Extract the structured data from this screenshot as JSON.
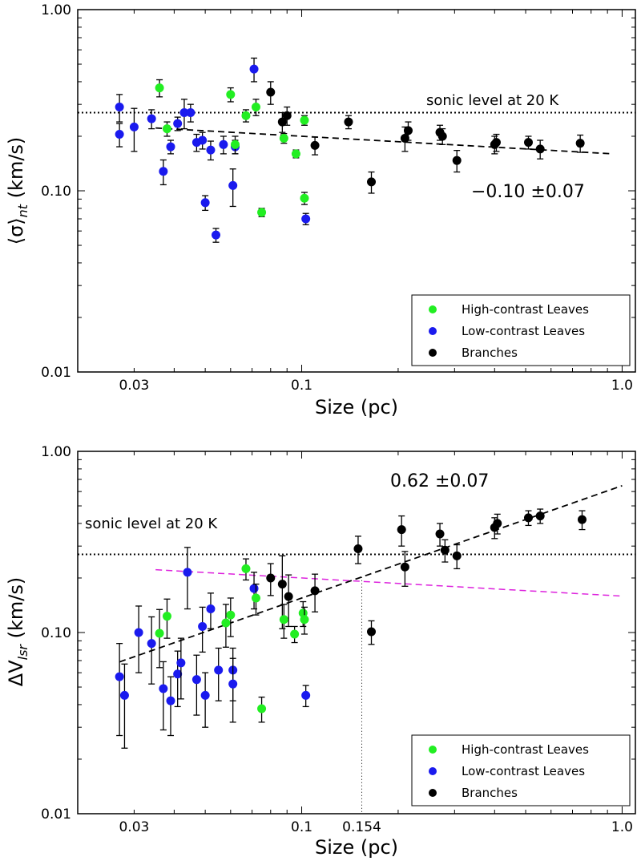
{
  "chart_data": [
    {
      "type": "scatter",
      "panel": "top",
      "xlabel": "Size (pc)",
      "ylabel": "⟨σ⟩",
      "ylabel_sub": "nt",
      "ylabel_unit": " (km/s)",
      "xscale": "log",
      "yscale": "log",
      "xlim": [
        0.02,
        1.1
      ],
      "ylim": [
        0.01,
        1.0
      ],
      "x_ticks": [
        {
          "value": 0.03,
          "label": "0.03"
        },
        {
          "value": 0.1,
          "label": "0.1"
        },
        {
          "value": 1.0,
          "label": "1.0"
        }
      ],
      "y_ticks": [
        {
          "value": 0.01,
          "label": "0.01"
        },
        {
          "value": 0.1,
          "label": "0.10"
        },
        {
          "value": 1.0,
          "label": "1.00"
        }
      ],
      "sonic_level": 0.27,
      "sonic_label": "sonic level at 20 K",
      "fit": {
        "label": "−0.10 ±0.07",
        "x_range": [
          0.035,
          0.93
        ],
        "slope": -0.1,
        "value_at_0_1": 0.2,
        "color": "#000000"
      },
      "series": [
        {
          "name": "High-contrast Leaves",
          "color": "#22ee22",
          "points": [
            {
              "x": 0.036,
              "y": 0.37,
              "err": 0.04
            },
            {
              "x": 0.038,
              "y": 0.22,
              "err": 0.02
            },
            {
              "x": 0.06,
              "y": 0.34,
              "err": 0.03
            },
            {
              "x": 0.067,
              "y": 0.26,
              "err": 0.02
            },
            {
              "x": 0.072,
              "y": 0.29,
              "err": 0.03
            },
            {
              "x": 0.062,
              "y": 0.18,
              "err": 0.02
            },
            {
              "x": 0.075,
              "y": 0.076,
              "err": 0.004
            },
            {
              "x": 0.088,
              "y": 0.195,
              "err": 0.012
            },
            {
              "x": 0.096,
              "y": 0.16,
              "err": 0.008
            },
            {
              "x": 0.102,
              "y": 0.245,
              "err": 0.015
            },
            {
              "x": 0.102,
              "y": 0.091,
              "err": 0.007
            }
          ]
        },
        {
          "name": "Low-contrast Leaves",
          "color": "#1a1aee",
          "points": [
            {
              "x": 0.027,
              "y": 0.29,
              "err": 0.05
            },
            {
              "x": 0.027,
              "y": 0.205,
              "err": 0.03
            },
            {
              "x": 0.03,
              "y": 0.225,
              "err": 0.06
            },
            {
              "x": 0.034,
              "y": 0.25,
              "err": 0.03
            },
            {
              "x": 0.037,
              "y": 0.128,
              "err": 0.02
            },
            {
              "x": 0.039,
              "y": 0.175,
              "err": 0.015
            },
            {
              "x": 0.041,
              "y": 0.235,
              "err": 0.02
            },
            {
              "x": 0.043,
              "y": 0.27,
              "err": 0.05
            },
            {
              "x": 0.045,
              "y": 0.27,
              "err": 0.03
            },
            {
              "x": 0.047,
              "y": 0.185,
              "err": 0.02
            },
            {
              "x": 0.049,
              "y": 0.19,
              "err": 0.02
            },
            {
              "x": 0.05,
              "y": 0.086,
              "err": 0.008
            },
            {
              "x": 0.052,
              "y": 0.168,
              "err": 0.02
            },
            {
              "x": 0.054,
              "y": 0.057,
              "err": 0.005
            },
            {
              "x": 0.057,
              "y": 0.18,
              "err": 0.02
            },
            {
              "x": 0.061,
              "y": 0.107,
              "err": 0.025
            },
            {
              "x": 0.062,
              "y": 0.175,
              "err": 0.015
            },
            {
              "x": 0.071,
              "y": 0.47,
              "err": 0.07
            },
            {
              "x": 0.103,
              "y": 0.07,
              "err": 0.005
            }
          ]
        },
        {
          "name": "Branches",
          "color": "#000000",
          "points": [
            {
              "x": 0.08,
              "y": 0.35,
              "err": 0.05
            },
            {
              "x": 0.087,
              "y": 0.24,
              "err": 0.03
            },
            {
              "x": 0.09,
              "y": 0.26,
              "err": 0.03
            },
            {
              "x": 0.11,
              "y": 0.178,
              "err": 0.02
            },
            {
              "x": 0.14,
              "y": 0.24,
              "err": 0.02
            },
            {
              "x": 0.165,
              "y": 0.112,
              "err": 0.015
            },
            {
              "x": 0.21,
              "y": 0.195,
              "err": 0.03
            },
            {
              "x": 0.215,
              "y": 0.215,
              "err": 0.025
            },
            {
              "x": 0.27,
              "y": 0.21,
              "err": 0.02
            },
            {
              "x": 0.275,
              "y": 0.2,
              "err": 0.02
            },
            {
              "x": 0.305,
              "y": 0.147,
              "err": 0.02
            },
            {
              "x": 0.4,
              "y": 0.18,
              "err": 0.02
            },
            {
              "x": 0.405,
              "y": 0.185,
              "err": 0.02
            },
            {
              "x": 0.51,
              "y": 0.185,
              "err": 0.015
            },
            {
              "x": 0.555,
              "y": 0.17,
              "err": 0.02
            },
            {
              "x": 0.74,
              "y": 0.183,
              "err": 0.02
            }
          ]
        }
      ]
    },
    {
      "type": "scatter",
      "panel": "bottom",
      "xlabel": "Size (pc)",
      "ylabel": "ΔV",
      "ylabel_sub": "lsr",
      "ylabel_unit": " (km/s)",
      "xscale": "log",
      "yscale": "log",
      "xlim": [
        0.02,
        1.1
      ],
      "ylim": [
        0.01,
        1.0
      ],
      "x_ticks": [
        {
          "value": 0.03,
          "label": "0.03"
        },
        {
          "value": 0.1,
          "label": "0.1"
        },
        {
          "value": 0.154,
          "label": "0.154"
        },
        {
          "value": 1.0,
          "label": "1.0"
        }
      ],
      "y_ticks": [
        {
          "value": 0.01,
          "label": "0.01"
        },
        {
          "value": 0.1,
          "label": "0.10"
        },
        {
          "value": 1.0,
          "label": "1.00"
        }
      ],
      "sonic_level": 0.27,
      "sonic_label": "sonic level at 20 K",
      "vertical_marker": 0.154,
      "fit": {
        "label": "0.62 ±0.07",
        "x_range": [
          0.027,
          1.0
        ],
        "slope": 0.62,
        "value_at_0_1": 0.155,
        "color": "#000000"
      },
      "reference_fit": {
        "x_range": [
          0.035,
          1.0
        ],
        "slope": -0.1,
        "value_at_0_1": 0.2,
        "color": "#dd22dd"
      },
      "series": [
        {
          "name": "High-contrast Leaves",
          "color": "#22ee22",
          "points": [
            {
              "x": 0.036,
              "y": 0.099,
              "err": 0.035
            },
            {
              "x": 0.038,
              "y": 0.123,
              "err": 0.03
            },
            {
              "x": 0.058,
              "y": 0.113,
              "err": 0.03
            },
            {
              "x": 0.06,
              "y": 0.125,
              "err": 0.03
            },
            {
              "x": 0.067,
              "y": 0.225,
              "err": 0.03
            },
            {
              "x": 0.072,
              "y": 0.155,
              "err": 0.03
            },
            {
              "x": 0.075,
              "y": 0.038,
              "err": 0.006
            },
            {
              "x": 0.088,
              "y": 0.118,
              "err": 0.025
            },
            {
              "x": 0.095,
              "y": 0.098,
              "err": 0.01
            },
            {
              "x": 0.101,
              "y": 0.128,
              "err": 0.02
            },
            {
              "x": 0.102,
              "y": 0.118,
              "err": 0.02
            }
          ]
        },
        {
          "name": "Low-contrast Leaves",
          "color": "#1a1aee",
          "points": [
            {
              "x": 0.027,
              "y": 0.057,
              "err": 0.03
            },
            {
              "x": 0.028,
              "y": 0.045,
              "err": 0.022
            },
            {
              "x": 0.031,
              "y": 0.1,
              "err": 0.04
            },
            {
              "x": 0.034,
              "y": 0.087,
              "err": 0.035
            },
            {
              "x": 0.037,
              "y": 0.049,
              "err": 0.02
            },
            {
              "x": 0.039,
              "y": 0.042,
              "err": 0.015
            },
            {
              "x": 0.041,
              "y": 0.059,
              "err": 0.02
            },
            {
              "x": 0.042,
              "y": 0.068,
              "err": 0.025
            },
            {
              "x": 0.044,
              "y": 0.215,
              "err": 0.08
            },
            {
              "x": 0.047,
              "y": 0.055,
              "err": 0.02
            },
            {
              "x": 0.049,
              "y": 0.108,
              "err": 0.03
            },
            {
              "x": 0.05,
              "y": 0.045,
              "err": 0.015
            },
            {
              "x": 0.052,
              "y": 0.135,
              "err": 0.03
            },
            {
              "x": 0.055,
              "y": 0.062,
              "err": 0.02
            },
            {
              "x": 0.061,
              "y": 0.062,
              "err": 0.02
            },
            {
              "x": 0.061,
              "y": 0.052,
              "err": 0.02
            },
            {
              "x": 0.071,
              "y": 0.175,
              "err": 0.04
            },
            {
              "x": 0.103,
              "y": 0.045,
              "err": 0.006
            }
          ]
        },
        {
          "name": "Branches",
          "color": "#000000",
          "points": [
            {
              "x": 0.08,
              "y": 0.2,
              "err": 0.04
            },
            {
              "x": 0.087,
              "y": 0.185,
              "err": 0.08
            },
            {
              "x": 0.091,
              "y": 0.158,
              "err": 0.05
            },
            {
              "x": 0.11,
              "y": 0.17,
              "err": 0.04
            },
            {
              "x": 0.15,
              "y": 0.29,
              "err": 0.05
            },
            {
              "x": 0.165,
              "y": 0.101,
              "err": 0.015
            },
            {
              "x": 0.205,
              "y": 0.37,
              "err": 0.07
            },
            {
              "x": 0.21,
              "y": 0.23,
              "err": 0.05
            },
            {
              "x": 0.27,
              "y": 0.35,
              "err": 0.05
            },
            {
              "x": 0.28,
              "y": 0.285,
              "err": 0.04
            },
            {
              "x": 0.305,
              "y": 0.265,
              "err": 0.04
            },
            {
              "x": 0.4,
              "y": 0.38,
              "err": 0.05
            },
            {
              "x": 0.408,
              "y": 0.4,
              "err": 0.05
            },
            {
              "x": 0.51,
              "y": 0.43,
              "err": 0.04
            },
            {
              "x": 0.555,
              "y": 0.44,
              "err": 0.04
            },
            {
              "x": 0.75,
              "y": 0.42,
              "err": 0.05
            }
          ]
        }
      ]
    }
  ]
}
